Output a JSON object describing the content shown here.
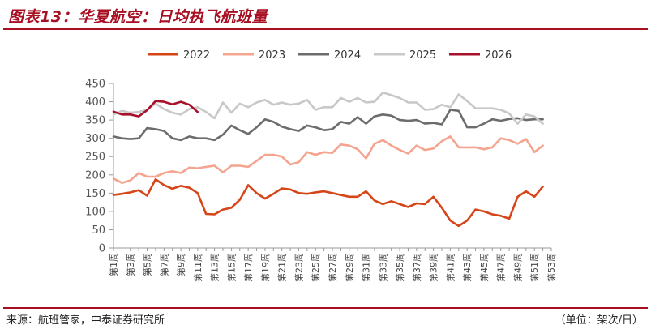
{
  "header": {
    "title": "图表13：华夏航空：日均执飞航班量"
  },
  "footer": {
    "source": "来源：航班管家，中泰证券研究所",
    "unit": "（单位：架次/日）"
  },
  "chart_data": {
    "type": "line",
    "title": "图表13：华夏航空：日均执飞航班量",
    "xlabel": "",
    "ylabel": "",
    "ylim": [
      0,
      450
    ],
    "yticks": [
      0,
      50,
      100,
      150,
      200,
      250,
      300,
      350,
      400,
      450
    ],
    "xlim": [
      1,
      53
    ],
    "categories": [
      "第1周",
      "第3周",
      "第5周",
      "第7周",
      "第9周",
      "第11周",
      "第13周",
      "第15周",
      "第17周",
      "第19周",
      "第21周",
      "第23周",
      "第25周",
      "第27周",
      "第29周",
      "第31周",
      "第33周",
      "第35周",
      "第37周",
      "第39周",
      "第41周",
      "第43周",
      "第45周",
      "第47周",
      "第49周",
      "第51周",
      "第53周"
    ],
    "category_weeks": [
      1,
      3,
      5,
      7,
      9,
      11,
      13,
      15,
      17,
      19,
      21,
      23,
      25,
      27,
      29,
      31,
      33,
      35,
      37,
      39,
      41,
      43,
      45,
      47,
      49,
      51,
      53
    ],
    "legend_position": "top",
    "series": [
      {
        "name": "2022",
        "color": "#d64518",
        "x": [
          1,
          2,
          3,
          4,
          5,
          6,
          7,
          8,
          9,
          10,
          11,
          12,
          13,
          14,
          15,
          16,
          17,
          18,
          19,
          20,
          21,
          22,
          23,
          24,
          25,
          26,
          27,
          28,
          29,
          30,
          31,
          32,
          33,
          34,
          35,
          36,
          37,
          38,
          39,
          40,
          41,
          42,
          43,
          44,
          45,
          46,
          47,
          48,
          49,
          50,
          51,
          52
        ],
        "values": [
          145,
          148,
          152,
          158,
          143,
          188,
          172,
          162,
          170,
          165,
          150,
          93,
          92,
          105,
          110,
          132,
          172,
          150,
          135,
          148,
          163,
          160,
          150,
          148,
          152,
          155,
          150,
          145,
          140,
          140,
          155,
          130,
          120,
          128,
          120,
          112,
          122,
          120,
          140,
          110,
          75,
          60,
          75,
          105,
          100,
          92,
          88,
          80,
          140,
          155,
          140,
          168
        ]
      },
      {
        "name": "2023",
        "color": "#f4a48f",
        "x": [
          1,
          2,
          3,
          4,
          5,
          6,
          7,
          8,
          9,
          10,
          11,
          12,
          13,
          14,
          15,
          16,
          17,
          18,
          19,
          20,
          21,
          22,
          23,
          24,
          25,
          26,
          27,
          28,
          29,
          30,
          31,
          32,
          33,
          34,
          35,
          36,
          37,
          38,
          39,
          40,
          41,
          42,
          43,
          44,
          45,
          46,
          47,
          48,
          49,
          50,
          51,
          52
        ],
        "values": [
          190,
          178,
          185,
          205,
          195,
          195,
          205,
          210,
          205,
          220,
          218,
          222,
          225,
          207,
          225,
          225,
          222,
          238,
          255,
          255,
          250,
          228,
          235,
          262,
          255,
          262,
          260,
          283,
          280,
          270,
          245,
          285,
          295,
          280,
          268,
          258,
          280,
          268,
          272,
          292,
          305,
          275,
          275,
          275,
          270,
          275,
          300,
          295,
          285,
          298,
          262,
          280
        ]
      },
      {
        "name": "2024",
        "color": "#6c6c6c",
        "x": [
          1,
          2,
          3,
          4,
          5,
          6,
          7,
          8,
          9,
          10,
          11,
          12,
          13,
          14,
          15,
          16,
          17,
          18,
          19,
          20,
          21,
          22,
          23,
          24,
          25,
          26,
          27,
          28,
          29,
          30,
          31,
          32,
          33,
          34,
          35,
          36,
          37,
          38,
          39,
          40,
          41,
          42,
          43,
          44,
          45,
          46,
          47,
          48,
          49,
          50,
          51,
          52
        ],
        "values": [
          305,
          300,
          298,
          300,
          328,
          325,
          320,
          300,
          295,
          305,
          300,
          300,
          295,
          310,
          335,
          322,
          312,
          330,
          352,
          345,
          332,
          325,
          320,
          335,
          330,
          322,
          325,
          345,
          340,
          358,
          340,
          360,
          365,
          362,
          350,
          348,
          350,
          340,
          342,
          338,
          378,
          375,
          330,
          330,
          340,
          352,
          348,
          353,
          355,
          350,
          352,
          352
        ]
      },
      {
        "name": "2025",
        "color": "#c8c8c8",
        "x": [
          1,
          2,
          3,
          4,
          5,
          6,
          7,
          8,
          9,
          10,
          11,
          12,
          13,
          14,
          15,
          16,
          17,
          18,
          19,
          20,
          21,
          22,
          23,
          24,
          25,
          26,
          27,
          28,
          29,
          30,
          31,
          32,
          33,
          34,
          35,
          36,
          37,
          38,
          39,
          40,
          41,
          42,
          43,
          44,
          45,
          46,
          47,
          48,
          49,
          50,
          51,
          52
        ],
        "values": [
          365,
          375,
          370,
          372,
          378,
          395,
          380,
          370,
          365,
          380,
          385,
          372,
          355,
          398,
          370,
          395,
          385,
          398,
          405,
          392,
          398,
          392,
          395,
          405,
          378,
          385,
          385,
          410,
          400,
          410,
          398,
          400,
          425,
          418,
          410,
          398,
          398,
          378,
          380,
          392,
          385,
          420,
          402,
          382,
          382,
          382,
          378,
          368,
          340,
          365,
          360,
          340
        ]
      },
      {
        "name": "2026",
        "color": "#a8102c",
        "x": [
          1,
          2,
          3,
          4,
          5,
          6,
          7,
          8,
          9,
          10,
          11
        ],
        "values": [
          373,
          365,
          365,
          360,
          377,
          402,
          400,
          393,
          400,
          392,
          372
        ]
      }
    ]
  }
}
